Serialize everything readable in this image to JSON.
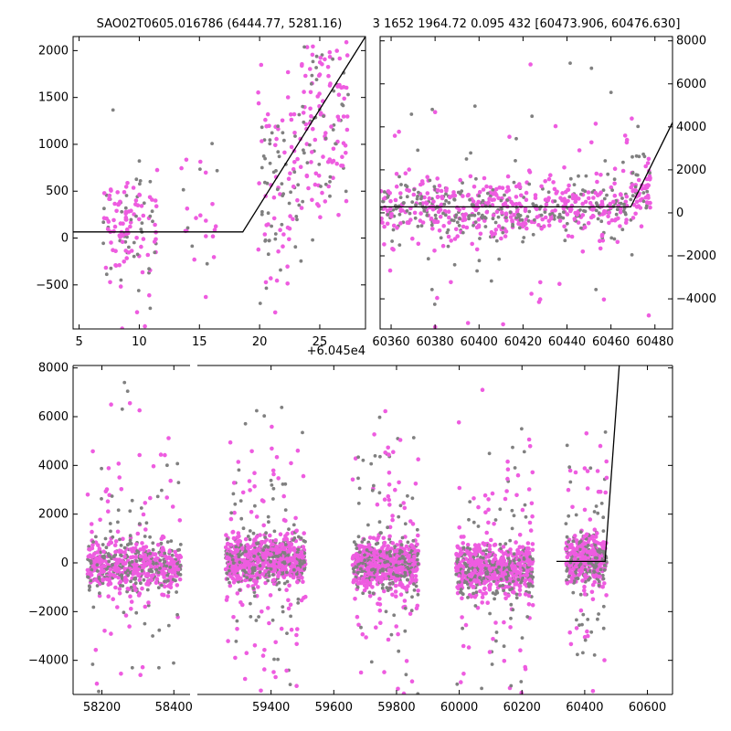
{
  "header": {
    "left_text": "SAO02T0605.016786 (6444.77, 5281.16)",
    "right_text": "3 1652 1964.72 0.095 432 [60473.906, 60476.630]"
  },
  "colors": {
    "grey_points": "#808080",
    "pink_points": "#ee5ce0",
    "fit_line": "#000000"
  },
  "chart_data": [
    {
      "type": "scatter",
      "panel": "top-left zoom",
      "xlim": [
        4.5,
        28.8
      ],
      "ylim": [
        -970,
        2150
      ],
      "xticks": [
        5,
        10,
        15,
        20,
        25
      ],
      "xtick_labels": [
        "5",
        "10",
        "15",
        "20",
        "25"
      ],
      "yticks": [
        -500,
        0,
        500,
        1000,
        1500,
        2000
      ],
      "ytick_labels": [
        "−500",
        "0",
        "500",
        "1000",
        "1500",
        "2000"
      ],
      "x_offset_label": "+6.045e4",
      "clusters": [
        {
          "x": [
            7.0,
            11.5
          ],
          "y": [
            -100,
            350
          ],
          "n": 140
        },
        {
          "x": [
            13.5,
            16.5
          ],
          "y": [
            -200,
            800
          ],
          "n": 25
        },
        {
          "x": [
            19.8,
            23.5
          ],
          "y": [
            -200,
            1300
          ],
          "n": 110
        },
        {
          "x": [
            23.5,
            27.5
          ],
          "y": [
            500,
            2100
          ],
          "n": 150
        }
      ],
      "fit_line": [
        [
          4.5,
          65
        ],
        [
          18.6,
          65
        ],
        [
          28.8,
          2150
        ]
      ]
    },
    {
      "type": "scatter",
      "panel": "top-right",
      "xlim": [
        60355,
        60488
      ],
      "ylim": [
        -5400,
        8200
      ],
      "xticks": [
        60360,
        60380,
        60400,
        60420,
        60440,
        60460,
        60480
      ],
      "xtick_labels": [
        "60360",
        "60380",
        "60400",
        "60420",
        "60440",
        "60460",
        "60480"
      ],
      "yticks": [
        -4000,
        -2000,
        0,
        2000,
        4000,
        6000,
        8000
      ],
      "ytick_labels": [
        "−4000",
        "−2000",
        "0",
        "2000",
        "4000",
        "6000",
        "8000"
      ],
      "y_axis_side": "right",
      "clusters": [
        {
          "x": [
            60355,
            60468
          ],
          "y": [
            0,
            250
          ],
          "n": 700
        },
        {
          "x": [
            60469,
            60478
          ],
          "y": [
            300,
            1800
          ],
          "n": 70
        }
      ],
      "fit_line": [
        [
          60355,
          280
        ],
        [
          60469,
          280
        ],
        [
          60488,
          4200
        ]
      ]
    },
    {
      "type": "scatter",
      "panel": "bottom broken-axis",
      "segments": [
        {
          "xlim": [
            58120,
            58445
          ],
          "xticks": [
            58200,
            58400
          ],
          "xtick_labels": [
            "58200",
            "58400"
          ]
        },
        {
          "xlim": [
            59165,
            60680
          ],
          "xticks": [
            59400,
            59600,
            59800,
            60000,
            60200,
            60400,
            60600
          ],
          "xtick_labels": [
            "59400",
            "59600",
            "59800",
            "60000",
            "60200",
            "60400",
            "60600"
          ]
        }
      ],
      "ylim": [
        -5400,
        8100
      ],
      "yticks": [
        -4000,
        -2000,
        0,
        2000,
        4000,
        6000,
        8000
      ],
      "ytick_labels": [
        "−4000",
        "−2000",
        "0",
        "2000",
        "4000",
        "6000",
        "8000"
      ],
      "clusters": [
        {
          "x": [
            58160,
            58420
          ],
          "y": [
            -300,
            0
          ],
          "n": 700
        },
        {
          "x": [
            59255,
            59510
          ],
          "y": [
            0,
            200
          ],
          "n": 900
        },
        {
          "x": [
            59660,
            59870
          ],
          "y": [
            -200,
            150
          ],
          "n": 800
        },
        {
          "x": [
            59990,
            60235
          ],
          "y": [
            -500,
            0
          ],
          "n": 800
        },
        {
          "x": [
            60340,
            60470
          ],
          "y": [
            0,
            300
          ],
          "n": 500
        }
      ],
      "fit_line": [
        [
          60310,
          60
        ],
        [
          60465,
          60
        ],
        [
          60510,
          8100
        ]
      ]
    }
  ]
}
